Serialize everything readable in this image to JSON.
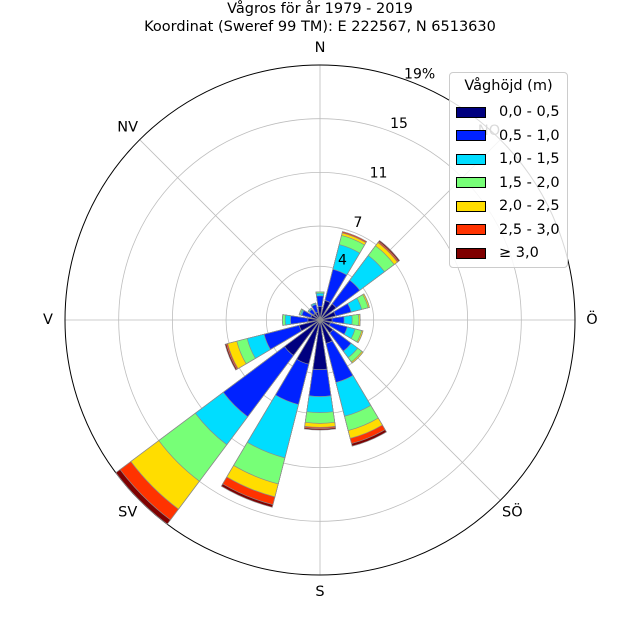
{
  "chart_data": {
    "type": "windrose",
    "title_line1": "Vågros för år 1979 - 2019",
    "title_line2": "Koordinat (Sweref 99 TM): E 222567, N 6513630",
    "directions": [
      "N",
      "NO",
      "Ö",
      "SÖ",
      "S",
      "SV",
      "V",
      "NV"
    ],
    "radial_ticks": [
      4,
      7,
      11,
      15,
      19
    ],
    "radial_tick_labels": [
      "4",
      "7",
      "11",
      "15",
      "19%"
    ],
    "rmax": 19,
    "sector_angles_deg": [
      0,
      22.5,
      45,
      67.5,
      90,
      112.5,
      135,
      157.5,
      180,
      202.5,
      225,
      247.5,
      270,
      292.5,
      315,
      337.5
    ],
    "legend_title": "Våghöjd (m)",
    "bins": [
      "0,0 - 0,5",
      "0,5 - 1,0",
      "1,0 - 1,5",
      "1,5 - 2,0",
      "2,0 - 2,5",
      "2,5 - 3,0",
      "≥ 3,0"
    ],
    "colors": [
      "#00007f",
      "#0022ff",
      "#00ddff",
      "#77ff77",
      "#ffdd00",
      "#ff3300",
      "#7f0000"
    ],
    "cumulative_by_sector": [
      [
        1.0,
        1.8,
        2.0,
        2.1,
        2.1,
        2.1,
        2.1
      ],
      [
        1.5,
        3.9,
        5.8,
        6.5,
        6.7,
        6.8,
        6.8
      ],
      [
        1.5,
        3.7,
        6.0,
        6.9,
        7.2,
        7.3,
        7.4
      ],
      [
        1.2,
        2.4,
        3.2,
        3.7,
        3.8,
        3.8,
        3.8
      ],
      [
        0.9,
        1.8,
        2.4,
        2.9,
        3.0,
        3.0,
        3.0
      ],
      [
        0.8,
        2.1,
        2.7,
        3.2,
        3.3,
        3.3,
        3.3
      ],
      [
        1.2,
        2.9,
        3.5,
        3.9,
        4.0,
        4.0,
        4.0
      ],
      [
        1.8,
        4.8,
        7.4,
        8.5,
        9.1,
        9.5,
        9.7
      ],
      [
        3.7,
        5.7,
        6.9,
        7.7,
        8.0,
        8.1,
        8.2
      ],
      [
        3.4,
        6.5,
        10.6,
        12.6,
        13.6,
        14.2,
        14.4
      ],
      [
        3.3,
        9.0,
        11.6,
        15.0,
        17.6,
        18.6,
        19.0
      ],
      [
        1.6,
        4.3,
        5.6,
        6.4,
        7.1,
        7.2,
        7.3
      ],
      [
        0.9,
        2.2,
        2.6,
        2.8,
        2.8,
        2.8,
        2.8
      ],
      [
        0.7,
        1.4,
        1.5,
        1.6,
        1.6,
        1.6,
        1.6
      ],
      [
        0.6,
        1.0,
        1.1,
        1.1,
        1.1,
        1.1,
        1.1
      ],
      [
        0.6,
        1.2,
        1.3,
        1.3,
        1.3,
        1.3,
        1.3
      ]
    ]
  }
}
